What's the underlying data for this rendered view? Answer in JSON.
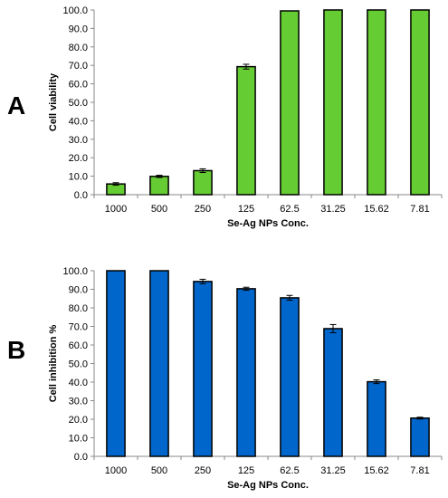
{
  "chart_data": [
    {
      "panel_letter": "A",
      "type": "bar",
      "categories": [
        "1000",
        "500",
        "250",
        "125",
        "62.5",
        "31.25",
        "15.62",
        "7.81"
      ],
      "series": [
        {
          "values": [
            5.8,
            9.9,
            13.0,
            69.3,
            99.5,
            100.0,
            100.0,
            100.0
          ],
          "errors": [
            0.7,
            0.6,
            1.0,
            1.3,
            0.0,
            0.0,
            0.0,
            0.0
          ]
        }
      ],
      "xlabel": "Se-Ag NPs Conc.",
      "ylabel": "Cell viability",
      "ylim": [
        0,
        100
      ],
      "yticks": [
        "0.0",
        "10.0",
        "20.0",
        "30.0",
        "40.0",
        "50.0",
        "60.0",
        "70.0",
        "80.0",
        "90.0",
        "100.0"
      ],
      "grid": false,
      "legend": "none",
      "color": "#66cc33"
    },
    {
      "panel_letter": "B",
      "type": "bar",
      "categories": [
        "1000",
        "500",
        "250",
        "125",
        "62.5",
        "31.25",
        "15.62",
        "7.81"
      ],
      "series": [
        {
          "values": [
            100.0,
            100.0,
            94.2,
            90.3,
            85.4,
            68.8,
            40.2,
            20.6
          ],
          "errors": [
            0.0,
            0.0,
            1.2,
            0.8,
            1.3,
            2.2,
            1.0,
            0.5
          ]
        }
      ],
      "xlabel": "Se-Ag NPs Conc.",
      "ylabel": "Cell inhibition %",
      "ylim": [
        0,
        100
      ],
      "yticks": [
        "0.0",
        "10.0",
        "20.0",
        "30.0",
        "40.0",
        "50.0",
        "60.0",
        "70.0",
        "80.0",
        "90.0",
        "100.0"
      ],
      "grid": false,
      "legend": "none",
      "color": "#0066cc"
    }
  ]
}
